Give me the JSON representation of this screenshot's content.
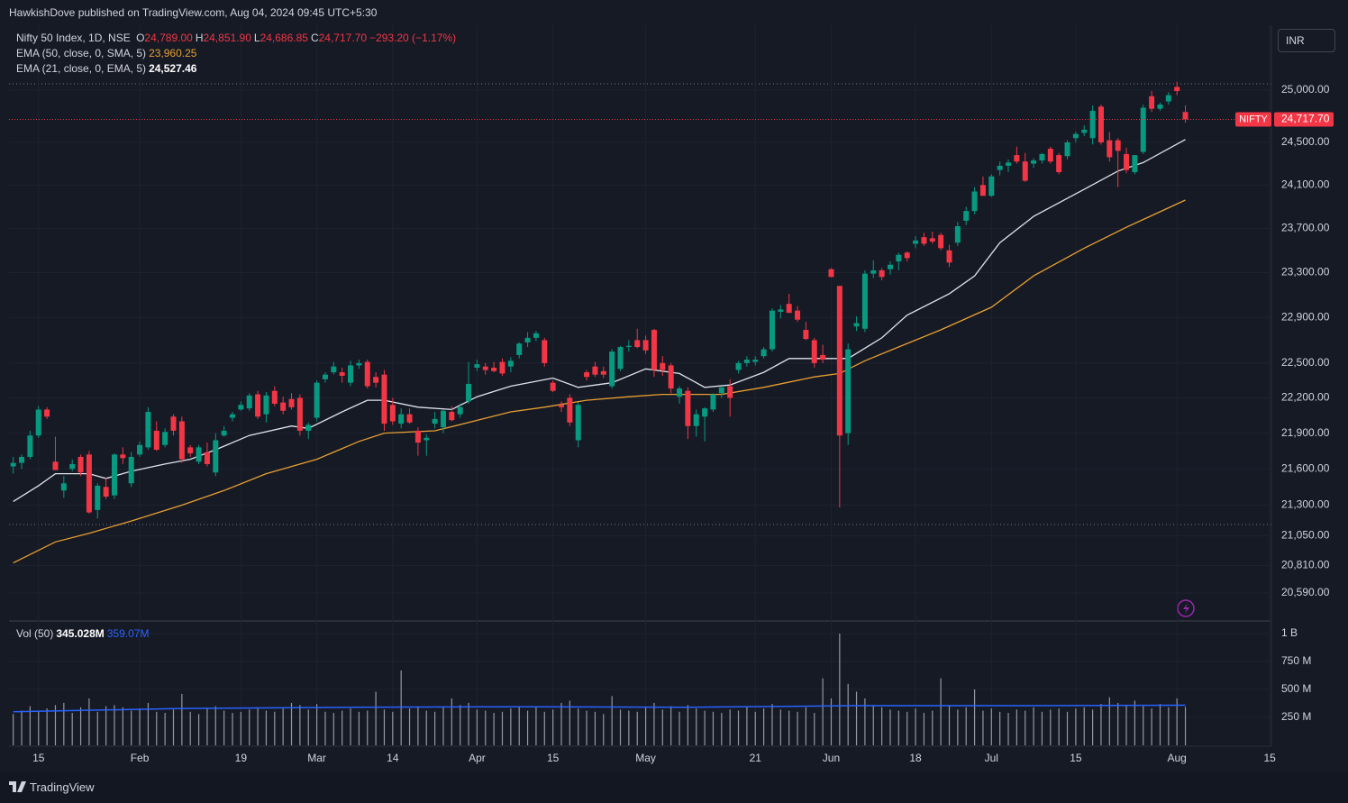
{
  "header": "HawkishDove published on TradingView.com, Aug 04, 2024 09:45 UTC+5:30",
  "currency": "INR",
  "footer": "TradingView",
  "chart_data": {
    "type": "candlestick",
    "legend": {
      "symbol": "Nifty 50 Index, 1D, NSE",
      "ohlc_labels": [
        "O",
        "H",
        "L",
        "C"
      ],
      "ohlc_values": [
        "24,789.00",
        "24,851.90",
        "24,686.85",
        "24,717.70"
      ],
      "change": "−293.20 (−1.17%)"
    },
    "log_scale": true,
    "grid": true,
    "up_color": "#089981",
    "down_color": "#f23645",
    "ylim": [
      20376,
      25615
    ],
    "yticks": [
      {
        "value": 25000,
        "label": "25,000.00"
      },
      {
        "value": 24500,
        "label": "24,500.00"
      },
      {
        "value": 24100,
        "label": "24,100.00"
      },
      {
        "value": 23700,
        "label": "23,700.00"
      },
      {
        "value": 23300,
        "label": "23,300.00"
      },
      {
        "value": 22900,
        "label": "22,900.00"
      },
      {
        "value": 22500,
        "label": "22,500.00"
      },
      {
        "value": 22200,
        "label": "22,200.00"
      },
      {
        "value": 21900,
        "label": "21,900.00"
      },
      {
        "value": 21600,
        "label": "21,600.00"
      },
      {
        "value": 21300,
        "label": "21,300.00"
      },
      {
        "value": 21050,
        "label": "21,050.00"
      },
      {
        "value": 20810,
        "label": "20,810.00"
      },
      {
        "value": 20590,
        "label": "20,590.00"
      }
    ],
    "xlim": [
      -0.5,
      149.2
    ],
    "xticks": [
      {
        "value": 3,
        "label": "15"
      },
      {
        "value": 15,
        "label": "Feb"
      },
      {
        "value": 27,
        "label": "19"
      },
      {
        "value": 36,
        "label": "Mar"
      },
      {
        "value": 45,
        "label": "14"
      },
      {
        "value": 55,
        "label": "Apr"
      },
      {
        "value": 64,
        "label": "15"
      },
      {
        "value": 75,
        "label": "May"
      },
      {
        "value": 88,
        "label": "21"
      },
      {
        "value": 97,
        "label": "Jun"
      },
      {
        "value": 107,
        "label": "18"
      },
      {
        "value": 116,
        "label": "Jul"
      },
      {
        "value": 126,
        "label": "15"
      },
      {
        "value": 138,
        "label": "Aug"
      },
      {
        "value": 149,
        "label": "15"
      }
    ],
    "candles": {
      "open": [
        21620,
        21650,
        21700,
        21880,
        22100,
        21660,
        21420,
        21600,
        21700,
        21720,
        21260,
        21450,
        21380,
        21720,
        21480,
        21720,
        21780,
        21920,
        21800,
        22040,
        22000,
        21780,
        21660,
        21740,
        21570,
        21880,
        22030,
        22100,
        22110,
        22230,
        22060,
        22260,
        22160,
        22190,
        22200,
        21920,
        22030,
        22360,
        22420,
        22420,
        22330,
        22480,
        22510,
        22380,
        22400,
        22140,
        21980,
        22060,
        21920,
        21840,
        21980,
        21950,
        22080,
        22060,
        22170,
        22460,
        22470,
        22460,
        22510,
        22470,
        22570,
        22680,
        22720,
        22700,
        22330,
        22140,
        22200,
        21840,
        22420,
        22470,
        22430,
        22300,
        22450,
        22640,
        22700,
        22700,
        22790,
        22500,
        22480,
        22210,
        22260,
        21960,
        22040,
        22100,
        22240,
        22300,
        22440,
        22500,
        22510,
        22560,
        22620,
        22950,
        23020,
        22960,
        22790,
        22700,
        22570,
        23330,
        23180,
        21900,
        22820,
        22800,
        23290,
        23320,
        23330,
        23400,
        23480,
        23560,
        23620,
        23610,
        23640,
        23500,
        23570,
        23770,
        23860,
        24100,
        24000,
        24240,
        24280,
        24380,
        24320,
        24300,
        24330,
        24440,
        24380,
        24370,
        24540,
        24590,
        24540,
        24840,
        24520,
        24520,
        24390,
        24220,
        24410,
        24940,
        24820,
        24890,
        25030,
        24789
      ],
      "high": [
        21700,
        21720,
        21920,
        22130,
        22120,
        21870,
        21540,
        21680,
        21720,
        21750,
        21480,
        21530,
        21730,
        21780,
        21740,
        21830,
        22120,
        22000,
        21940,
        22060,
        22040,
        21800,
        21800,
        21820,
        21900,
        21960,
        22080,
        22170,
        22240,
        22260,
        22250,
        22300,
        22210,
        22240,
        22230,
        21990,
        22350,
        22420,
        22510,
        22460,
        22520,
        22530,
        22530,
        22420,
        22440,
        22200,
        22110,
        22110,
        21950,
        21890,
        22080,
        22100,
        22130,
        22150,
        22510,
        22530,
        22500,
        22510,
        22540,
        22550,
        22680,
        22770,
        22780,
        22720,
        22350,
        22170,
        22230,
        22160,
        22440,
        22510,
        22470,
        22620,
        22650,
        22700,
        22800,
        22740,
        22800,
        22560,
        22500,
        22300,
        22290,
        22100,
        22120,
        22240,
        22300,
        22360,
        22520,
        22560,
        22560,
        22640,
        22980,
        23010,
        23110,
        23000,
        22860,
        22720,
        22660,
        23340,
        23180,
        22670,
        22910,
        23320,
        23410,
        23340,
        23400,
        23480,
        23490,
        23630,
        23660,
        23670,
        23660,
        23550,
        23760,
        23900,
        24080,
        24180,
        24200,
        24320,
        24340,
        24460,
        24400,
        24350,
        24400,
        24460,
        24400,
        24520,
        24600,
        24660,
        24850,
        24860,
        24600,
        24540,
        24450,
        24380,
        24860,
        24990,
        24880,
        24980,
        25080,
        24851.9
      ],
      "low": [
        21560,
        21600,
        21680,
        21860,
        22020,
        21590,
        21360,
        21580,
        21540,
        21230,
        21190,
        21350,
        21350,
        21640,
        21450,
        21700,
        21760,
        21750,
        21780,
        21880,
        21650,
        21700,
        21640,
        21620,
        21540,
        21870,
        22000,
        22090,
        22090,
        22020,
        21990,
        22130,
        22060,
        22100,
        21880,
        21850,
        22000,
        22330,
        22400,
        22330,
        22300,
        22450,
        22280,
        22290,
        21920,
        21970,
        21940,
        21980,
        21710,
        21710,
        21940,
        21900,
        22000,
        22030,
        22150,
        22430,
        22400,
        22420,
        22390,
        22420,
        22540,
        22640,
        22690,
        22470,
        22250,
        22080,
        21960,
        21780,
        22350,
        22380,
        22370,
        22280,
        22430,
        22600,
        22630,
        22580,
        22380,
        22390,
        22240,
        22150,
        21850,
        21870,
        21830,
        22080,
        22200,
        22040,
        22410,
        22470,
        22480,
        22540,
        22600,
        22890,
        22940,
        22860,
        22700,
        22460,
        22500,
        23260,
        21280,
        21800,
        22780,
        22770,
        23250,
        23230,
        23280,
        23320,
        23400,
        23520,
        23540,
        23560,
        23500,
        23350,
        23540,
        23730,
        23830,
        24000,
        23990,
        24190,
        24220,
        24300,
        24130,
        24260,
        24300,
        24300,
        24200,
        24340,
        24500,
        24560,
        24480,
        24480,
        24320,
        24080,
        24210,
        24200,
        24390,
        24790,
        24800,
        24860,
        24950,
        24686.85
      ],
      "close": [
        21650,
        21700,
        21880,
        22100,
        22040,
        21590,
        21480,
        21640,
        21570,
        21240,
        21460,
        21370,
        21720,
        21690,
        21700,
        21800,
        22080,
        21760,
        21910,
        21920,
        21680,
        21730,
        21780,
        21640,
        21840,
        21920,
        22060,
        22140,
        22220,
        22040,
        22220,
        22150,
        22090,
        22120,
        21920,
        21970,
        22330,
        22400,
        22470,
        22390,
        22480,
        22500,
        22300,
        22330,
        21980,
        22000,
        22060,
        21990,
        21820,
        21860,
        22020,
        22090,
        22010,
        22120,
        22320,
        22490,
        22440,
        22430,
        22410,
        22520,
        22670,
        22720,
        22760,
        22500,
        22260,
        22120,
        21990,
        22140,
        22380,
        22400,
        22400,
        22600,
        22640,
        22650,
        22640,
        22610,
        22440,
        22440,
        22280,
        22280,
        21960,
        22060,
        22110,
        22230,
        22290,
        22200,
        22500,
        22530,
        22530,
        22620,
        22960,
        22970,
        22940,
        22880,
        22710,
        22500,
        22530,
        23260,
        21880,
        22620,
        22850,
        23290,
        23320,
        23260,
        23370,
        23460,
        23430,
        23590,
        23560,
        23580,
        23520,
        23390,
        23720,
        23860,
        24040,
        24000,
        24180,
        24280,
        24310,
        24320,
        24140,
        24330,
        24390,
        24320,
        24220,
        24500,
        24580,
        24620,
        24800,
        24500,
        24360,
        24420,
        24240,
        24380,
        24830,
        24820,
        24860,
        24950,
        24990,
        24717.7
      ]
    },
    "lines": [
      {
        "name": "EMA (50, close, 0, SMA, 5)",
        "value_label": "23,960.25",
        "color": "#e89f32",
        "x": [
          0,
          5,
          9,
          14,
          20,
          25,
          30,
          36,
          41,
          44,
          50,
          54,
          59,
          63,
          68,
          73,
          77,
          84,
          89,
          95,
          98,
          101,
          105,
          110,
          116,
          121,
          127,
          132,
          139
        ],
        "values": [
          20830,
          21000,
          21070,
          21170,
          21300,
          21420,
          21560,
          21680,
          21830,
          21900,
          21920,
          21990,
          22080,
          22120,
          22180,
          22210,
          22230,
          22230,
          22290,
          22380,
          22410,
          22520,
          22640,
          22790,
          22990,
          23270,
          23520,
          23710,
          23960.25
        ]
      },
      {
        "name": "EMA (21, close, 0, EMA, 5)",
        "value_label": "24,527.46",
        "color": "#e0e3eb",
        "x": [
          0,
          3,
          5,
          9,
          11,
          14,
          18,
          21,
          24,
          28,
          33,
          35,
          39,
          42,
          44,
          48,
          52,
          55,
          59,
          64,
          67,
          71,
          75,
          79,
          82,
          85,
          89,
          92,
          97,
          99,
          103,
          106,
          111,
          114,
          117,
          121,
          127,
          131,
          134,
          139
        ],
        "values": [
          21330,
          21460,
          21560,
          21560,
          21520,
          21580,
          21640,
          21680,
          21760,
          21880,
          21960,
          21940,
          22080,
          22180,
          22180,
          22120,
          22100,
          22210,
          22300,
          22370,
          22290,
          22330,
          22450,
          22410,
          22290,
          22310,
          22420,
          22540,
          22540,
          22540,
          22720,
          22920,
          23110,
          23270,
          23570,
          23810,
          24060,
          24230,
          24310,
          24527.46
        ]
      }
    ],
    "price_tag": {
      "label": "NIFTY",
      "value_label": "24,717.70"
    },
    "volume": {
      "name": "Vol (50)",
      "value_label": "345.028M",
      "ma_label": "359.07M",
      "color": "#9598a1",
      "ylim": [
        0,
        1105
      ],
      "yticks": [
        {
          "value": 1000,
          "label": "1 B"
        },
        {
          "value": 750,
          "label": "750 M"
        },
        {
          "value": 500,
          "label": "500 M"
        },
        {
          "value": 250,
          "label": "250 M"
        }
      ],
      "values": [
        280,
        310,
        350,
        300,
        330,
        360,
        380,
        290,
        340,
        420,
        300,
        350,
        360,
        340,
        310,
        330,
        380,
        300,
        290,
        320,
        460,
        300,
        280,
        330,
        350,
        310,
        290,
        300,
        320,
        340,
        310,
        300,
        330,
        380,
        360,
        320,
        370,
        300,
        290,
        310,
        330,
        300,
        310,
        480,
        320,
        300,
        670,
        330,
        350,
        310,
        300,
        340,
        420,
        360,
        380,
        320,
        310,
        290,
        300,
        330,
        340,
        310,
        350,
        300,
        320,
        380,
        400,
        330,
        310,
        300,
        280,
        440,
        320,
        310,
        300,
        340,
        380,
        320,
        350,
        300,
        360,
        330,
        310,
        300,
        290,
        320,
        310,
        340,
        300,
        330,
        370,
        320,
        310,
        300,
        340,
        290,
        600,
        420,
        1000,
        550,
        480,
        420,
        360,
        340,
        320,
        310,
        300,
        330,
        290,
        310,
        600,
        360,
        320,
        340,
        500,
        310,
        330,
        300,
        290,
        320,
        310,
        340,
        300,
        320,
        330,
        300,
        330,
        340,
        320,
        370,
        430,
        380,
        360,
        400,
        350,
        330,
        370,
        340,
        420,
        345.028
      ],
      "ma": {
        "color": "#2962ff",
        "x": [
          0,
          20,
          40,
          60,
          80,
          100,
          120,
          139
        ],
        "values": [
          300,
          330,
          340,
          345,
          340,
          355,
          355,
          359.07
        ]
      }
    }
  }
}
